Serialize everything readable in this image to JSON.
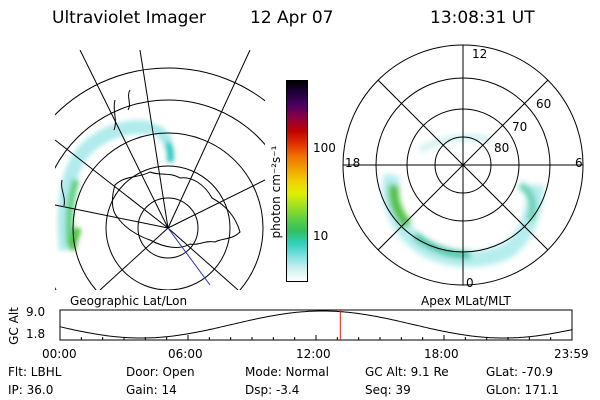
{
  "header": {
    "instrument": "Ultraviolet Imager",
    "date": "12 Apr 07",
    "time": "13:08:31 UT"
  },
  "colorbar": {
    "unit_label": "photon cm⁻²s⁻¹",
    "ticks": [
      "100",
      "10"
    ],
    "colors": [
      "#ffffff",
      "#ccf0f0",
      "#80e0e0",
      "#30d0c0",
      "#30c060",
      "#60d040",
      "#a0e020",
      "#e0f000",
      "#f0d000",
      "#f0a000",
      "#f07000",
      "#e03000",
      "#c00000",
      "#900040",
      "#500060",
      "#200040",
      "#000000"
    ]
  },
  "geographic_panel": {
    "caption": "Geographic Lat/Lon"
  },
  "apex_panel": {
    "caption": "Apex MLat/MLT",
    "mlt_labels": {
      "top": "12",
      "left": "18",
      "right": "6",
      "bottom": "0"
    },
    "lat_labels": [
      "60",
      "70",
      "80"
    ]
  },
  "altitude_plot": {
    "ylabel": "GC Alt",
    "ymax": "9.0",
    "ymin": "1.8",
    "xticks": [
      "00:00",
      "06:00",
      "12:00",
      "18:00",
      "23:59"
    ],
    "current_time_hours": 13.14,
    "marker_color": "#e02020"
  },
  "info": {
    "flt": "Flt: LBHL",
    "door": "Door: Open",
    "mode": "Mode: Normal",
    "gc_alt": "GC Alt: 9.1 Re",
    "glat": "GLat: -70.9",
    "ip": "IP: 36.0",
    "gain": "Gain: 14",
    "dsp": "Dsp:    -3.4",
    "seq": "Seq: 39",
    "glon": "GLon: 171.1"
  }
}
